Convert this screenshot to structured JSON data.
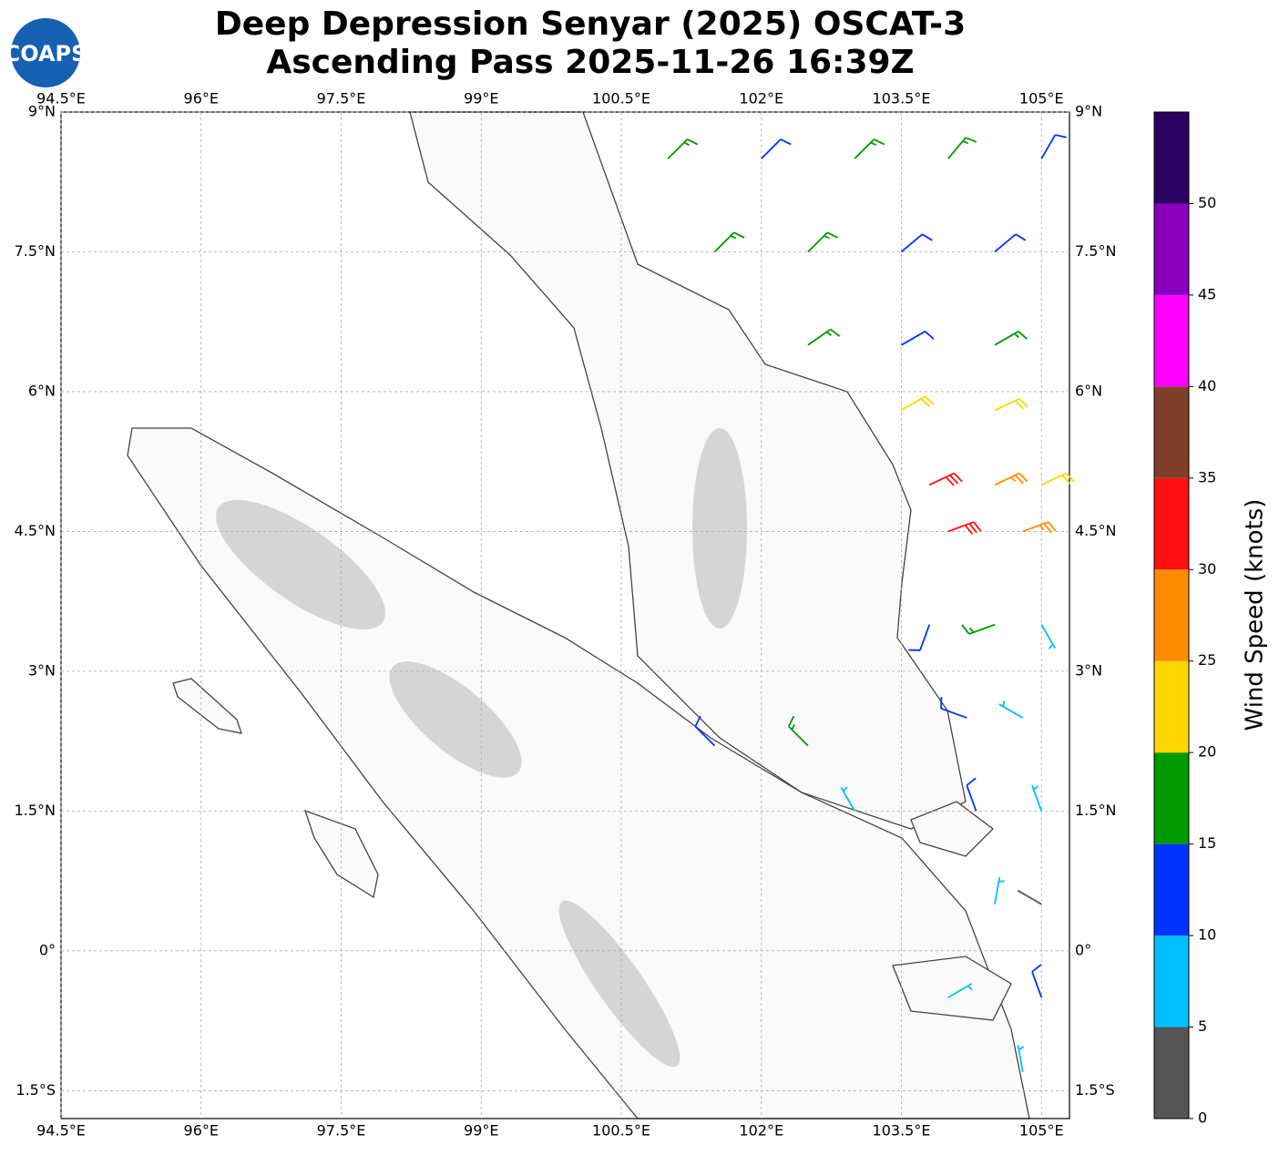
{
  "chart_data": {
    "type": "barbs",
    "title": "Deep Depression Senyar (2025) OSCAT-3",
    "subtitle": "Ascending Pass 2025-11-26 16:39Z",
    "logo": "COAPS",
    "xlim": [
      94.5,
      105.3
    ],
    "ylim": [
      -1.8,
      9
    ],
    "xticks": [
      {
        "value": 94.5,
        "label": "94.5°E"
      },
      {
        "value": 96,
        "label": "96°E"
      },
      {
        "value": 97.5,
        "label": "97.5°E"
      },
      {
        "value": 99,
        "label": "99°E"
      },
      {
        "value": 100.5,
        "label": "100.5°E"
      },
      {
        "value": 102,
        "label": "102°E"
      },
      {
        "value": 103.5,
        "label": "103.5°E"
      },
      {
        "value": 105,
        "label": "105°E"
      }
    ],
    "yticks": [
      {
        "value": 9,
        "label": "9°N"
      },
      {
        "value": 7.5,
        "label": "7.5°N"
      },
      {
        "value": 6,
        "label": "6°N"
      },
      {
        "value": 4.5,
        "label": "4.5°N"
      },
      {
        "value": 3,
        "label": "3°N"
      },
      {
        "value": 1.5,
        "label": "1.5°N"
      },
      {
        "value": 0,
        "label": "0°"
      },
      {
        "value": -1.5,
        "label": "1.5°S"
      }
    ],
    "grid": true,
    "colorbar": {
      "label": "Wind Speed (knots)",
      "lim": [
        0,
        55
      ],
      "ticks": [
        0,
        5,
        10,
        15,
        20,
        25,
        30,
        35,
        40,
        45,
        50
      ],
      "colors": [
        "#555555",
        "#00bfff",
        "#0033ff",
        "#009900",
        "#ffd700",
        "#ff8c00",
        "#ff1010",
        "#7f3f2a",
        "#ff00ff",
        "#8800bb",
        "#2a0060"
      ]
    },
    "barbs": {
      "lon": [
        101,
        102,
        103,
        104,
        105,
        101.5,
        102.5,
        103.5,
        104.5,
        102.5,
        103.5,
        104.5,
        103.5,
        104.5,
        103.8,
        104.5,
        105,
        104,
        104.8,
        103.8,
        104.5,
        105,
        104.2,
        104.8,
        101.5,
        102.5,
        103,
        104.3,
        105,
        104.5,
        105,
        104,
        105,
        104.8
      ],
      "lat": [
        8.5,
        8.5,
        8.5,
        8.5,
        8.5,
        7.5,
        7.5,
        7.5,
        7.5,
        6.5,
        6.5,
        6.5,
        5.8,
        5.8,
        5,
        5,
        5,
        4.5,
        4.5,
        3.5,
        3.5,
        3.5,
        2.5,
        2.5,
        2.2,
        2.2,
        1.5,
        1.5,
        1.5,
        0.5,
        0.5,
        -0.5,
        -0.5,
        -1.3
      ],
      "speed": [
        17,
        13,
        17,
        18,
        13,
        17,
        17,
        13,
        13,
        18,
        13,
        18,
        22,
        22,
        32,
        27,
        22,
        32,
        27,
        12,
        17,
        8,
        12,
        8,
        13,
        17,
        8,
        12,
        8,
        8,
        4,
        8,
        12,
        8
      ],
      "dir": [
        45,
        45,
        45,
        40,
        30,
        45,
        45,
        50,
        50,
        55,
        60,
        60,
        60,
        65,
        65,
        65,
        65,
        70,
        70,
        200,
        250,
        150,
        290,
        300,
        315,
        315,
        330,
        340,
        340,
        10,
        300,
        60,
        340,
        350
      ]
    }
  }
}
